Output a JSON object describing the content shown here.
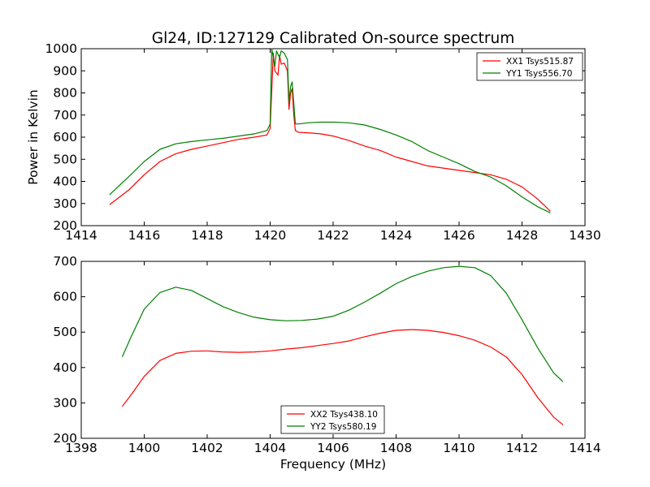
{
  "chart_data": [
    {
      "type": "line",
      "title": "Gl24, ID:127129 Calibrated On-source spectrum",
      "xlabel": "",
      "ylabel": "Power in Kelvin",
      "xlim": [
        1414,
        1430
      ],
      "ylim": [
        200,
        1000
      ],
      "xticks": [
        "1414",
        "1416",
        "1418",
        "1420",
        "1422",
        "1424",
        "1426",
        "1428",
        "1430"
      ],
      "yticks": [
        "200",
        "300",
        "400",
        "500",
        "600",
        "700",
        "800",
        "900",
        "1000"
      ],
      "grid": false,
      "legend_position": "top-right",
      "series": [
        {
          "name": "XX1 Tsys515.87",
          "color": "#ff0000",
          "x": [
            1414.9,
            1415.5,
            1416.0,
            1416.5,
            1417.0,
            1417.5,
            1418.0,
            1418.5,
            1419.0,
            1419.5,
            1419.9,
            1420.0,
            1420.1,
            1420.15,
            1420.25,
            1420.3,
            1420.35,
            1420.45,
            1420.55,
            1420.6,
            1420.65,
            1420.7,
            1420.75,
            1420.8,
            1420.9,
            1421.2,
            1421.6,
            1422.0,
            1422.5,
            1423.0,
            1423.5,
            1424.0,
            1424.5,
            1425.0,
            1425.5,
            1426.0,
            1426.5,
            1427.0,
            1427.5,
            1428.0,
            1428.5,
            1428.9
          ],
          "values": [
            295,
            360,
            430,
            490,
            525,
            545,
            560,
            575,
            590,
            600,
            610,
            640,
            980,
            900,
            880,
            970,
            930,
            935,
            900,
            725,
            800,
            820,
            700,
            630,
            622,
            620,
            615,
            605,
            585,
            560,
            540,
            510,
            490,
            470,
            460,
            450,
            440,
            430,
            410,
            375,
            320,
            265
          ]
        },
        {
          "name": "YY1 Tsys556.70",
          "color": "#008000",
          "x": [
            1414.9,
            1415.5,
            1416.0,
            1416.5,
            1417.0,
            1417.5,
            1418.0,
            1418.5,
            1419.0,
            1419.5,
            1419.9,
            1420.0,
            1420.05,
            1420.15,
            1420.2,
            1420.3,
            1420.35,
            1420.45,
            1420.55,
            1420.6,
            1420.65,
            1420.7,
            1420.75,
            1420.8,
            1420.9,
            1421.2,
            1421.6,
            1422.0,
            1422.5,
            1423.0,
            1423.5,
            1424.0,
            1424.5,
            1425.0,
            1425.5,
            1426.0,
            1426.5,
            1427.0,
            1427.5,
            1428.0,
            1428.5,
            1428.9
          ],
          "values": [
            340,
            420,
            490,
            545,
            570,
            580,
            588,
            595,
            605,
            615,
            630,
            660,
            1000,
            920,
            990,
            960,
            990,
            980,
            950,
            760,
            830,
            850,
            750,
            660,
            660,
            665,
            668,
            668,
            665,
            655,
            635,
            610,
            580,
            540,
            510,
            480,
            445,
            420,
            380,
            330,
            285,
            258
          ]
        }
      ]
    },
    {
      "type": "line",
      "title": "",
      "xlabel": "Frequency (MHz)",
      "ylabel": "",
      "xlim": [
        1398,
        1414
      ],
      "ylim": [
        200,
        700
      ],
      "xticks": [
        "1398",
        "1400",
        "1402",
        "1404",
        "1406",
        "1408",
        "1410",
        "1412",
        "1414"
      ],
      "yticks": [
        "200",
        "300",
        "400",
        "500",
        "600",
        "700"
      ],
      "grid": false,
      "legend_position": "bottom-center",
      "series": [
        {
          "name": "XX2 Tsys438.10",
          "color": "#ff0000",
          "x": [
            1399.3,
            1399.6,
            1400.0,
            1400.5,
            1401.0,
            1401.5,
            1402.0,
            1402.5,
            1403.0,
            1403.5,
            1404.0,
            1404.5,
            1405.0,
            1405.5,
            1406.0,
            1406.5,
            1407.0,
            1407.5,
            1408.0,
            1408.5,
            1409.0,
            1409.5,
            1410.0,
            1410.5,
            1411.0,
            1411.5,
            1412.0,
            1412.5,
            1413.0,
            1413.3
          ],
          "values": [
            290,
            325,
            375,
            420,
            440,
            446,
            447,
            444,
            443,
            444,
            447,
            452,
            456,
            462,
            468,
            475,
            487,
            497,
            505,
            507,
            505,
            499,
            490,
            477,
            458,
            430,
            380,
            315,
            260,
            238
          ]
        },
        {
          "name": "YY2 Tsys580.19",
          "color": "#008000",
          "x": [
            1399.3,
            1399.6,
            1400.0,
            1400.5,
            1401.0,
            1401.5,
            1402.0,
            1402.5,
            1403.0,
            1403.5,
            1404.0,
            1404.5,
            1405.0,
            1405.5,
            1406.0,
            1406.5,
            1407.0,
            1407.5,
            1408.0,
            1408.5,
            1409.0,
            1409.5,
            1410.0,
            1410.5,
            1411.0,
            1411.5,
            1412.0,
            1412.5,
            1413.0,
            1413.3
          ],
          "values": [
            430,
            490,
            565,
            612,
            627,
            618,
            595,
            572,
            555,
            542,
            535,
            532,
            533,
            537,
            545,
            562,
            585,
            610,
            637,
            657,
            672,
            682,
            686,
            682,
            660,
            610,
            535,
            455,
            385,
            360
          ]
        }
      ]
    }
  ]
}
